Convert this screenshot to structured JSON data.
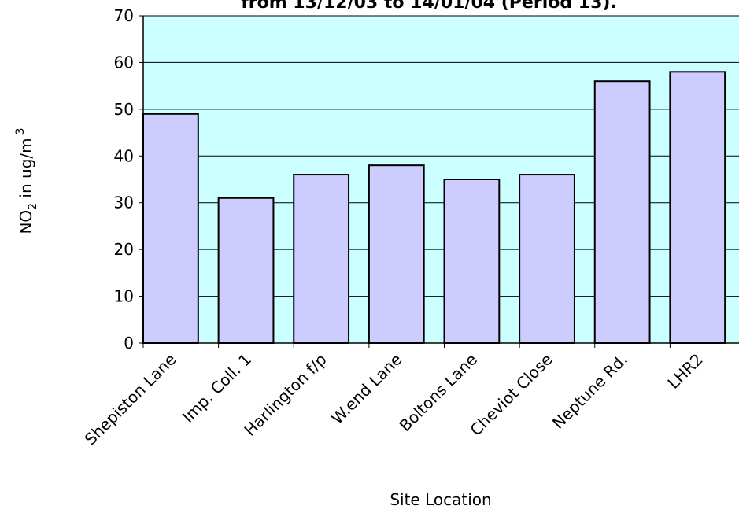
{
  "chart_data": {
    "type": "bar",
    "title": "from 13/12/03 to 14/01/04 (Period 13).",
    "x_label": "Site Location",
    "y_label": {
      "main": "NO",
      "sub": "2",
      "rest": " in ug/m",
      "sup": "3"
    },
    "categories": [
      "Shepiston Lane",
      "Imp. Coll. 1",
      "Harlington f/p",
      "W.end Lane",
      "Boltons Lane",
      "Cheviot Close",
      "Neptune Rd.",
      "LHR2"
    ],
    "values": [
      49,
      31,
      36,
      38,
      35,
      36,
      56,
      58
    ],
    "color": "#ccccff",
    "plot_background": "#ccffff",
    "ylim": [
      0,
      70
    ],
    "yticks": [
      0,
      10,
      20,
      30,
      40,
      50,
      60,
      70
    ],
    "grid": true
  }
}
